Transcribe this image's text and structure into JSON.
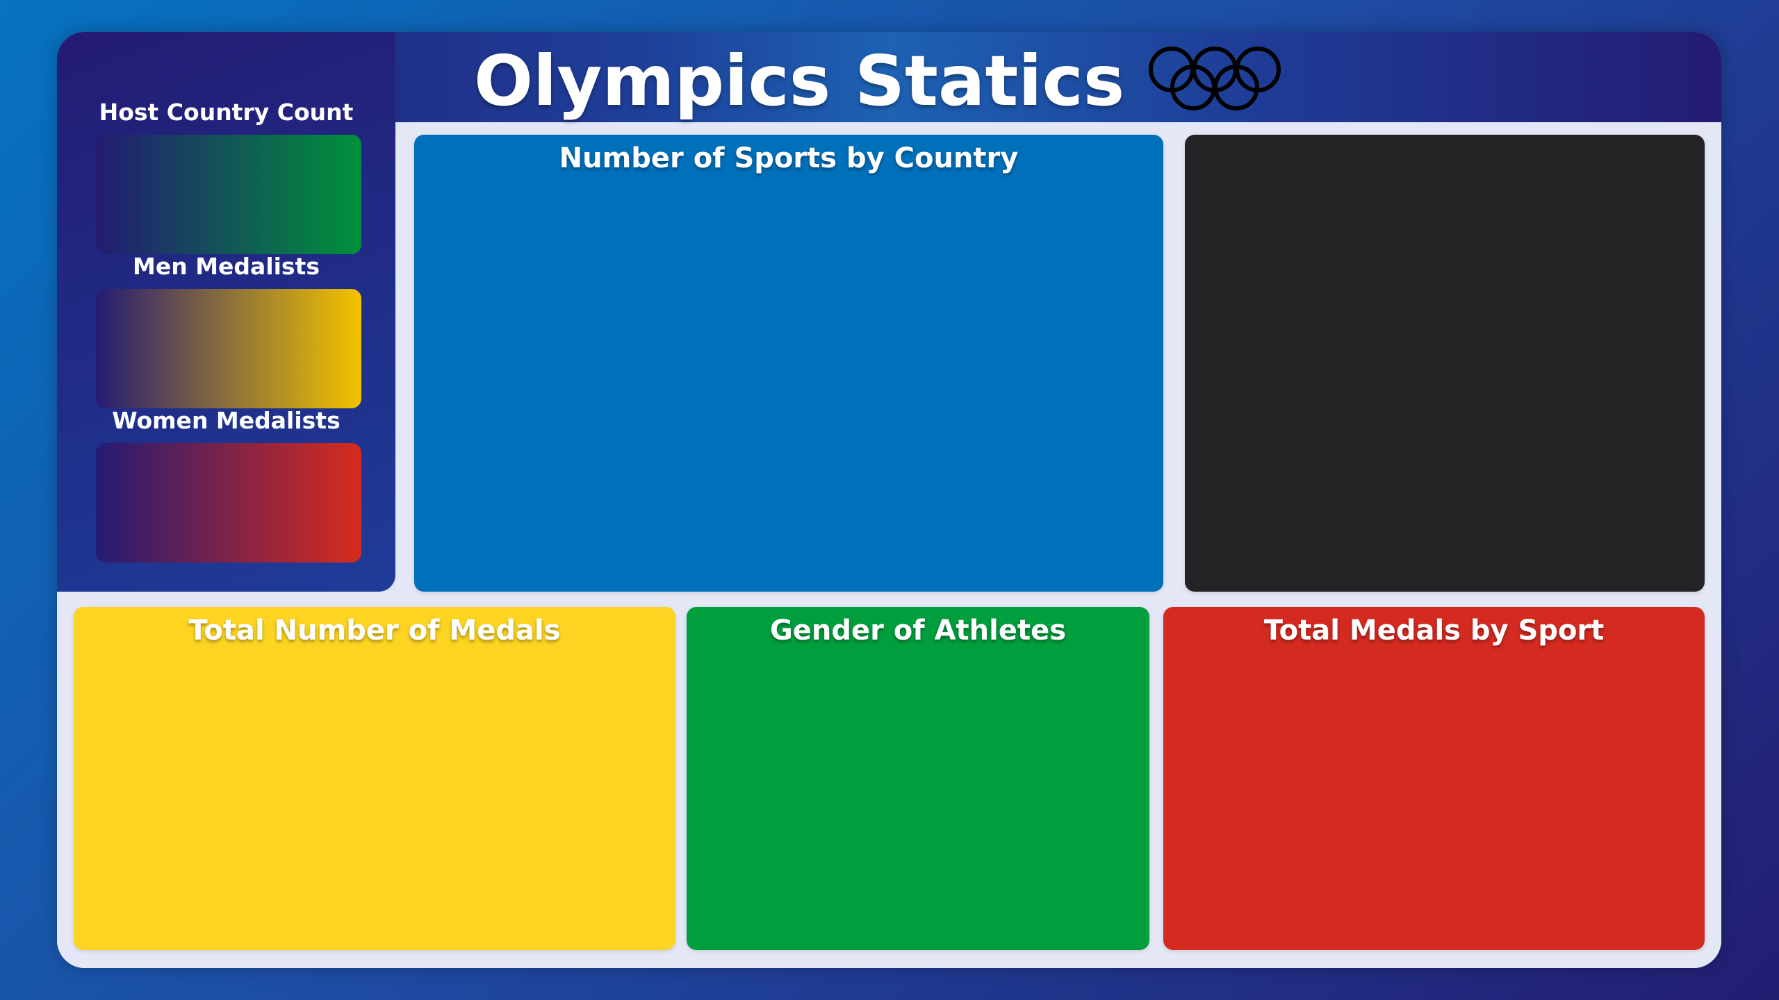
{
  "header": {
    "title": "Olympics Statics",
    "logo_icon": "olympic-rings-icon"
  },
  "kpis": [
    {
      "label": "Host Country Count",
      "accent": "#009c3b"
    },
    {
      "label": "Men Medalists",
      "accent": "#f5c400"
    },
    {
      "label": "Women Medalists",
      "accent": "#d52b1e"
    }
  ],
  "tiles": {
    "sports_by_country": {
      "title": "Number of Sports by Country",
      "color": "#0070bb"
    },
    "dark_panel": {
      "title": "",
      "color": "#232326"
    },
    "total_medals": {
      "title": "Total Number of Medals",
      "color": "#fdd421"
    },
    "gender": {
      "title": "Gender of Athletes",
      "color": "#009e3d"
    },
    "medals_by_sport": {
      "title": "Total Medals by Sport",
      "color": "#d42a20"
    }
  },
  "colors": {
    "background_start": "#0672c0",
    "background_end": "#231d72",
    "frame": "#e4e7f5"
  }
}
